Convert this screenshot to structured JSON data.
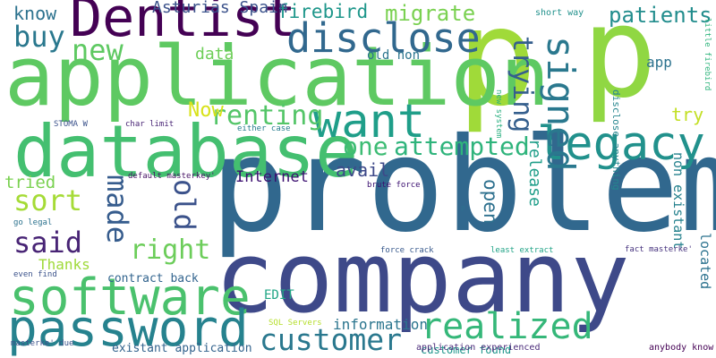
{
  "background": "#ffffff",
  "palette": {
    "dark_purple": "#440154",
    "purple": "#482475",
    "indigo": "#414487",
    "blue": "#355f8d",
    "steel": "#2a788e",
    "teal": "#21918c",
    "sea": "#22a884",
    "green": "#44bf70",
    "leaf": "#7ad151",
    "lime": "#bddf26",
    "yellow": "#e6e419"
  },
  "words": [
    {
      "text": "p",
      "weight": 100,
      "color": "#a0da39"
    },
    {
      "text": "p",
      "weight": 95,
      "color": "#90d743"
    },
    {
      "text": "problem",
      "weight": 92,
      "color": "#31688e"
    },
    {
      "text": "company",
      "weight": 90,
      "color": "#3e4989"
    },
    {
      "text": "application",
      "weight": 72,
      "color": "#5ec962"
    },
    {
      "text": "database",
      "weight": 70,
      "color": "#44bf70"
    },
    {
      "text": "Dentist",
      "weight": 55,
      "color": "#440154"
    },
    {
      "text": "software",
      "weight": 45,
      "color": "#4ac16d"
    },
    {
      "text": "password",
      "weight": 45,
      "color": "#26828e"
    },
    {
      "text": "want",
      "weight": 42,
      "color": "#1f9e89"
    },
    {
      "text": "legacy",
      "weight": 40,
      "color": "#21918c"
    },
    {
      "text": "signed",
      "weight": 36,
      "color": "#2a788e"
    },
    {
      "text": "disclose",
      "weight": 34,
      "color": "#31688e"
    },
    {
      "text": "customer",
      "weight": 30,
      "color": "#2a788e"
    },
    {
      "text": "realized",
      "weight": 32,
      "color": "#35b779"
    },
    {
      "text": "renting",
      "weight": 28,
      "color": "#54c568"
    },
    {
      "text": "right",
      "weight": 28,
      "color": "#6ccd5a"
    },
    {
      "text": "made",
      "weight": 26,
      "color": "#365c8d"
    },
    {
      "text": "old",
      "weight": 26,
      "color": "#3b528b"
    },
    {
      "text": "trying",
      "weight": 26,
      "color": "#355f8d"
    },
    {
      "text": "said",
      "weight": 26,
      "color": "#482475"
    },
    {
      "text": "sort",
      "weight": 26,
      "color": "#a5db36"
    },
    {
      "text": "new",
      "weight": 26,
      "color": "#5ec962"
    },
    {
      "text": "buy",
      "weight": 24,
      "color": "#2a788e"
    },
    {
      "text": "one",
      "weight": 22,
      "color": "#3dbc74"
    },
    {
      "text": "attempted",
      "weight": 22,
      "color": "#2fb47c"
    },
    {
      "text": "patients",
      "weight": 20,
      "color": "#228d8d"
    },
    {
      "text": "migrate",
      "weight": 20,
      "color": "#7ad151"
    },
    {
      "text": "firebird",
      "weight": 18,
      "color": "#1f978b"
    },
    {
      "text": "Asturias Spain",
      "weight": 14,
      "color": "#3b528b"
    },
    {
      "text": "know",
      "weight": 16,
      "color": "#2c728e"
    },
    {
      "text": "data",
      "weight": 16,
      "color": "#6ece58"
    },
    {
      "text": "Now",
      "weight": 18,
      "color": "#d8e219"
    },
    {
      "text": "try",
      "weight": 16,
      "color": "#c2df23"
    },
    {
      "text": "release",
      "weight": 16,
      "color": "#1f9e89"
    },
    {
      "text": "open",
      "weight": 16,
      "color": "#2d708e"
    },
    {
      "text": "avail",
      "weight": 16,
      "color": "#3e4989"
    },
    {
      "text": "tried",
      "weight": 16,
      "color": "#7ad151"
    },
    {
      "text": "Internet",
      "weight": 14,
      "color": "#3b0f70"
    },
    {
      "text": "Thanks",
      "weight": 14,
      "color": "#9fda3a"
    },
    {
      "text": "located",
      "weight": 14,
      "color": "#2c728e"
    },
    {
      "text": "non existant",
      "weight": 14,
      "color": "#26828e"
    },
    {
      "text": "EDIT",
      "weight": 14,
      "color": "#21a685"
    },
    {
      "text": "information",
      "weight": 14,
      "color": "#2b758e"
    },
    {
      "text": "existant application",
      "weight": 11,
      "color": "#33638d"
    },
    {
      "text": "customer found",
      "weight": 11,
      "color": "#1f968b"
    },
    {
      "text": "app",
      "weight": 14,
      "color": "#2c728e"
    },
    {
      "text": "old non",
      "weight": 13,
      "color": "#2b758e"
    },
    {
      "text": "disclose anything",
      "weight": 10,
      "color": "#25858e"
    },
    {
      "text": "short way",
      "weight": 8,
      "color": "#21918c"
    },
    {
      "text": "little firebird",
      "weight": 7,
      "color": "#2fb47c"
    },
    {
      "text": "new system",
      "weight": 7,
      "color": "#29af7f"
    },
    {
      "text": "contract back",
      "weight": 11,
      "color": "#32648e"
    },
    {
      "text": "STOMA W",
      "weight": 8,
      "color": "#3b528b"
    },
    {
      "text": "char limit",
      "weight": 8,
      "color": "#482475"
    },
    {
      "text": "either case",
      "weight": 8,
      "color": "#287d8e"
    },
    {
      "text": "default masterkey'",
      "weight": 8,
      "color": "#471365"
    },
    {
      "text": "brute force",
      "weight": 8,
      "color": "#3b0f70"
    },
    {
      "text": "go legal",
      "weight": 8,
      "color": "#2c728e"
    },
    {
      "text": "P",
      "weight": 7,
      "color": "#2d708e"
    },
    {
      "text": "fact masterke'",
      "weight": 8,
      "color": "#46327e"
    },
    {
      "text": "force crack",
      "weight": 8,
      "color": "#38598c"
    },
    {
      "text": "least extract",
      "weight": 8,
      "color": "#20a386"
    },
    {
      "text": "even find",
      "weight": 8,
      "color": "#3b528b"
    },
    {
      "text": "SQL Servers",
      "weight": 8,
      "color": "#b5de2b"
    },
    {
      "text": "masterke' due",
      "weight": 8,
      "color": "#3b528b"
    },
    {
      "text": "application experienced",
      "weight": 8,
      "color": "#482878"
    },
    {
      "text": "anybody know",
      "weight": 8,
      "color": "#440154"
    }
  ]
}
